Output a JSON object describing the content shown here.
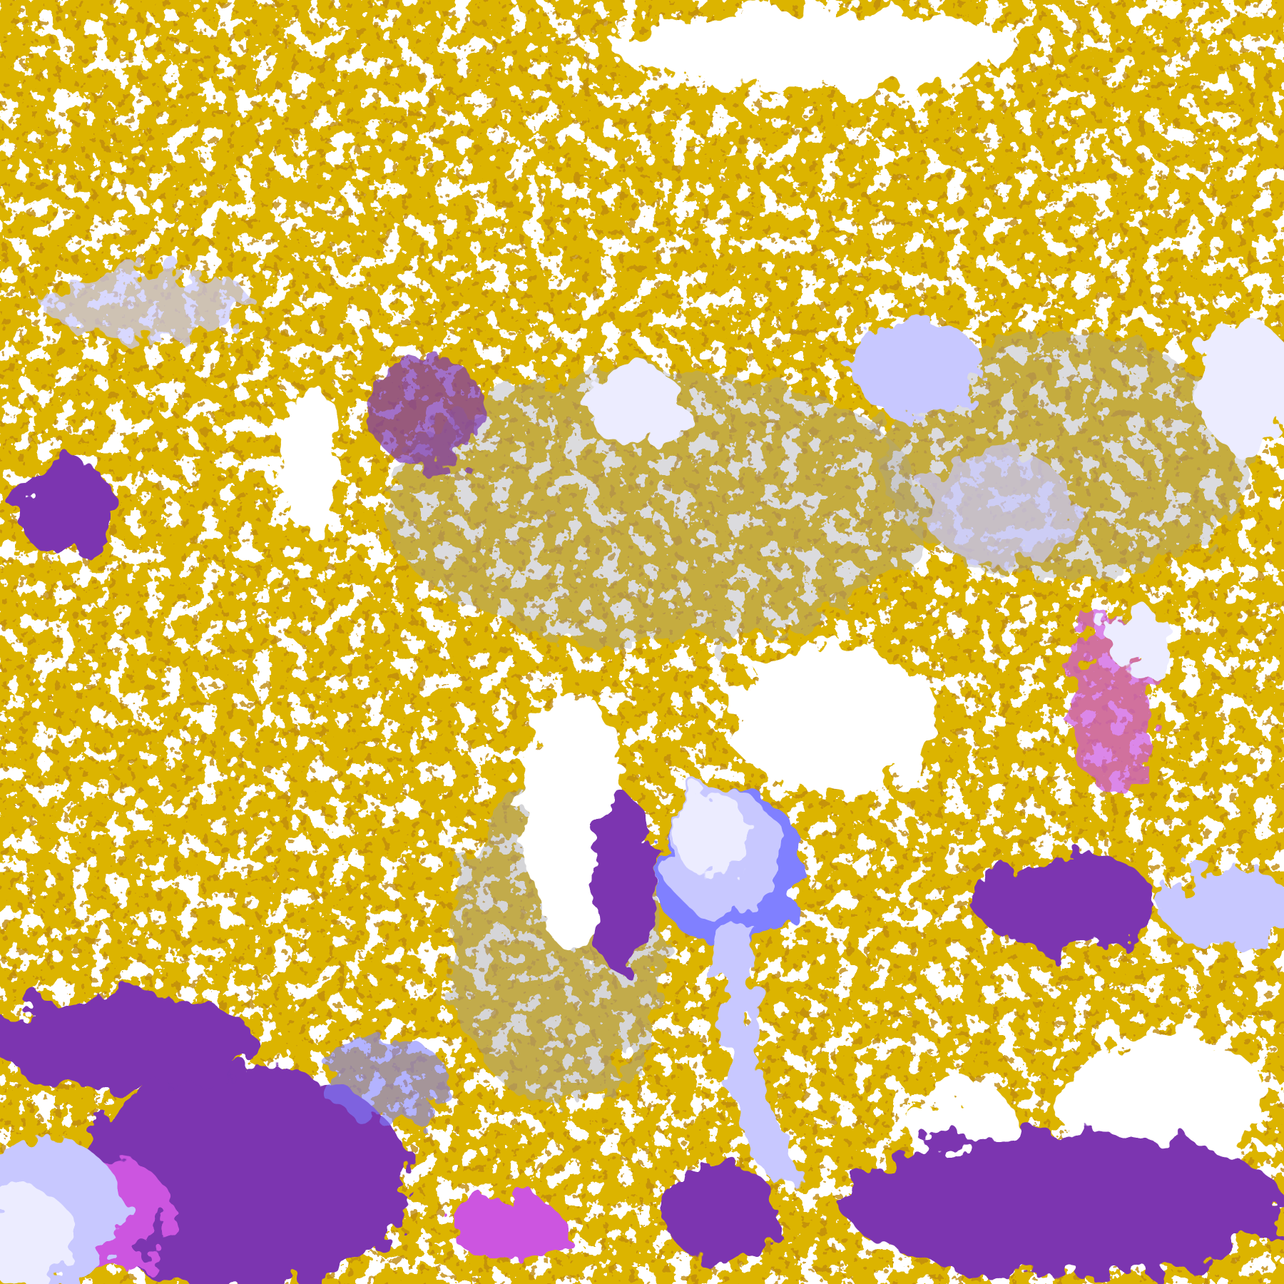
{
  "map": {
    "type": "false-color satellite cloud classification",
    "palette": {
      "clear": "#ffffff",
      "gold": "#dcb400",
      "dark_gold": "#c08c0a",
      "purple": "#7b35b0",
      "magenta": "#cc55e0",
      "periwinkle": "#8080ff",
      "lavender": "#c8c8ff",
      "pale_lavender": "#ececff",
      "gray": "#a0a0a8"
    }
  }
}
